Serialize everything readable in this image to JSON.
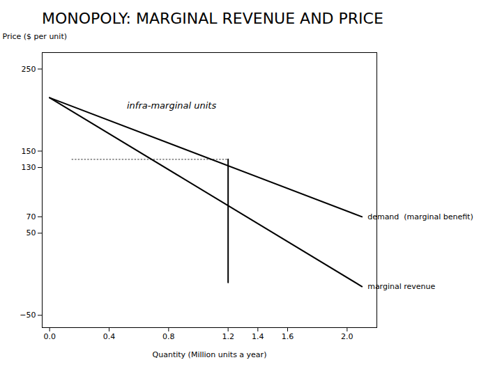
{
  "chart_data": {
    "type": "line",
    "title": "MONOPOLY: MARGINAL REVENUE AND PRICE",
    "xlabel": "Quantity (Million units a year)",
    "ylabel": "Price ($ per unit)",
    "series": [
      {
        "name": "demand  (marginal benefit)",
        "color": "#000000",
        "x": [
          0.0,
          2.1
        ],
        "values": [
          215,
          70
        ]
      },
      {
        "name": "marginal revenue",
        "color": "#000000",
        "x": [
          0.0,
          2.1
        ],
        "values": [
          215,
          -15
        ]
      }
    ],
    "reference_lines": [
      {
        "x": [
          1.2,
          1.2
        ],
        "values": [
          -10,
          140
        ],
        "color": "#000000"
      },
      {
        "x": [
          0.15,
          1.2
        ],
        "values": [
          140,
          140
        ],
        "color": "#555555",
        "line_style": "dotted"
      }
    ],
    "annotations": [
      {
        "text": "infra-marginal units",
        "x": 0.82,
        "y": 205
      }
    ],
    "xlim": [
      -0.05,
      2.2
    ],
    "ylim": [
      -65,
      270
    ],
    "xticks": [
      {
        "value": 0,
        "label": "0.0"
      },
      0.4,
      0.8,
      1.2,
      1.4,
      1.6,
      {
        "value": 2.0,
        "label": "2.0"
      }
    ],
    "yticks": [
      -50,
      50,
      70,
      130,
      150,
      250
    ]
  }
}
